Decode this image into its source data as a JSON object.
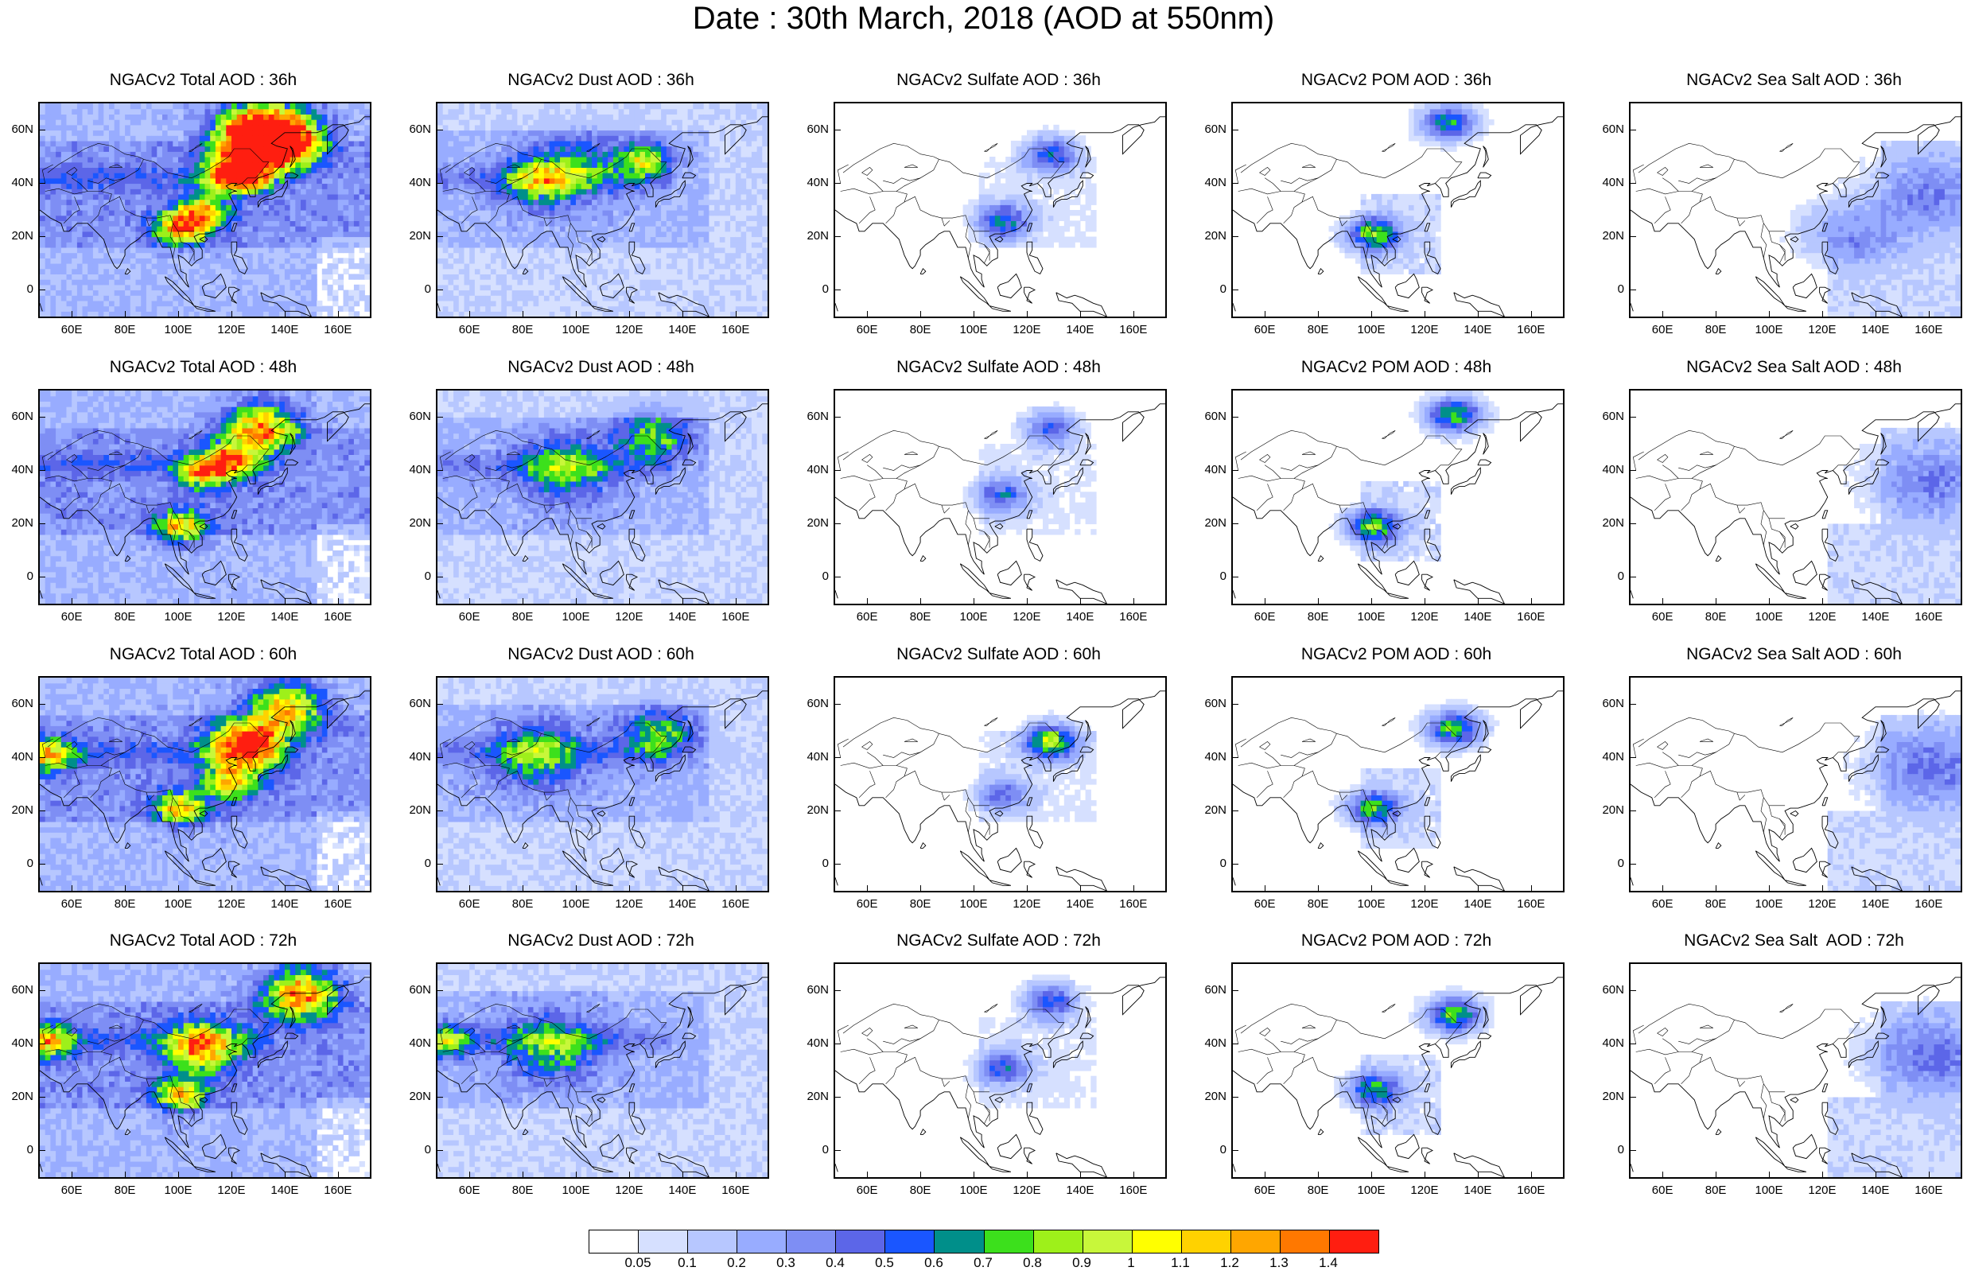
{
  "figure": {
    "title": "Date : 30th March, 2018 (AOD at 550nm)"
  },
  "panels": [
    {
      "title": "NGACv2 Total AOD : 36h",
      "species": "total",
      "hour": 36
    },
    {
      "title": "NGACv2 Dust AOD : 36h",
      "species": "dust",
      "hour": 36
    },
    {
      "title": "NGACv2 Sulfate AOD : 36h",
      "species": "sulfate",
      "hour": 36
    },
    {
      "title": "NGACv2 POM AOD : 36h",
      "species": "pom",
      "hour": 36
    },
    {
      "title": "NGACv2 Sea Salt AOD : 36h",
      "species": "seasalt",
      "hour": 36
    },
    {
      "title": "NGACv2 Total AOD : 48h",
      "species": "total",
      "hour": 48
    },
    {
      "title": "NGACv2 Dust AOD : 48h",
      "species": "dust",
      "hour": 48
    },
    {
      "title": "NGACv2 Sulfate AOD : 48h",
      "species": "sulfate",
      "hour": 48
    },
    {
      "title": "NGACv2 POM AOD : 48h",
      "species": "pom",
      "hour": 48
    },
    {
      "title": "NGACv2 Sea Salt AOD : 48h",
      "species": "seasalt",
      "hour": 48
    },
    {
      "title": "NGACv2 Total AOD : 60h",
      "species": "total",
      "hour": 60
    },
    {
      "title": "NGACv2 Dust AOD : 60h",
      "species": "dust",
      "hour": 60
    },
    {
      "title": "NGACv2 Sulfate AOD : 60h",
      "species": "sulfate",
      "hour": 60
    },
    {
      "title": "NGACv2 POM AOD : 60h",
      "species": "pom",
      "hour": 60
    },
    {
      "title": "NGACv2 Sea Salt AOD : 60h",
      "species": "seasalt",
      "hour": 60
    },
    {
      "title": "NGACv2 Total AOD : 72h",
      "species": "total",
      "hour": 72
    },
    {
      "title": "NGACv2 Dust AOD : 72h",
      "species": "dust",
      "hour": 72
    },
    {
      "title": "NGACv2 Sulfate AOD : 72h",
      "species": "sulfate",
      "hour": 72
    },
    {
      "title": "NGACv2 POM AOD : 72h",
      "species": "pom",
      "hour": 72
    },
    {
      "title": "NGACv2 Sea Salt  AOD : 72h",
      "species": "seasalt",
      "hour": 72
    }
  ],
  "axes": {
    "lon_range": [
      48,
      172
    ],
    "lat_range": [
      -10,
      70
    ],
    "lon_ticks": [
      60,
      80,
      100,
      120,
      140,
      160
    ],
    "lon_tick_labels": [
      "60E",
      "80E",
      "100E",
      "120E",
      "140E",
      "160E"
    ],
    "lat_ticks": [
      0,
      20,
      40,
      60
    ],
    "lat_tick_labels": [
      "0",
      "20N",
      "40N",
      "60N"
    ]
  },
  "colorbar": {
    "levels": [
      "0.05",
      "0.1",
      "0.2",
      "0.3",
      "0.4",
      "0.5",
      "0.6",
      "0.7",
      "0.8",
      "0.9",
      "1",
      "1.1",
      "1.2",
      "1.3",
      "1.4"
    ],
    "colors": [
      "#ffffff",
      "#d6e0ff",
      "#b7c7ff",
      "#98acff",
      "#7e8ef4",
      "#5c66e8",
      "#1a56ff",
      "#008f8a",
      "#3ce01c",
      "#9ef01a",
      "#c8f73a",
      "#ffff00",
      "#ffd200",
      "#ffa600",
      "#ff7800",
      "#ff1e10"
    ]
  },
  "chart_data": [
    {
      "type": "heatmap",
      "title": "NGACv2 Total AOD : 36h",
      "xlabel": "",
      "ylabel": "",
      "xlim": [
        48,
        172
      ],
      "ylim": [
        -10,
        70
      ],
      "features": [
        [
          100,
          22,
          1.0,
          1,
          0.04
        ],
        [
          118,
          43,
          1.0,
          1,
          0.03
        ],
        [
          128,
          56,
          1.2,
          2,
          0.1
        ],
        [
          138,
          55,
          1.2,
          2,
          0.1
        ],
        [
          108,
          28,
          1.0,
          1,
          0.04
        ],
        [
          125,
          42,
          0.8,
          1,
          0.05
        ],
        [
          132,
          58,
          0.9,
          3,
          0.04
        ]
      ]
    },
    {
      "type": "heatmap",
      "title": "NGACv2 Dust AOD : 36h",
      "xlabel": "",
      "ylabel": "",
      "xlim": [
        48,
        172
      ],
      "ylim": [
        -10,
        70
      ],
      "features": [
        [
          85,
          40,
          0.7,
          2,
          0.02
        ],
        [
          125,
          48,
          0.8,
          1,
          0.03
        ],
        [
          100,
          45,
          0.45,
          3,
          0.0
        ]
      ]
    },
    {
      "type": "heatmap",
      "title": "NGACv2 Sulfate AOD : 36h",
      "xlabel": "",
      "ylabel": "",
      "xlim": [
        48,
        172
      ],
      "ylim": [
        -10,
        70
      ],
      "features": [
        [
          110,
          25,
          0.6,
          1,
          0.05
        ],
        [
          128,
          50,
          0.6,
          1,
          0.04
        ]
      ]
    },
    {
      "type": "heatmap",
      "title": "NGACv2 POM AOD : 36h",
      "xlabel": "",
      "ylabel": "",
      "xlim": [
        48,
        172
      ],
      "ylim": [
        -10,
        70
      ],
      "features": [
        [
          100,
          20,
          0.8,
          1,
          0.06
        ],
        [
          128,
          62,
          0.7,
          1,
          0.05
        ]
      ]
    },
    {
      "type": "heatmap",
      "title": "NGACv2 Sea Salt AOD : 36h",
      "xlabel": "",
      "ylabel": "",
      "xlim": [
        48,
        172
      ],
      "ylim": [
        -10,
        70
      ],
      "features": [
        [
          160,
          35,
          0.3,
          4,
          0.02
        ],
        [
          130,
          20,
          0.3,
          3,
          0.02
        ]
      ]
    },
    {
      "type": "heatmap",
      "title": "NGACv2 Total AOD : 48h",
      "xlabel": "",
      "ylabel": "",
      "xlim": [
        48,
        172
      ],
      "ylim": [
        -10,
        70
      ],
      "features": [
        [
          130,
          55,
          1.1,
          2,
          0.09
        ],
        [
          118,
          43,
          0.9,
          1,
          0.04
        ],
        [
          100,
          18,
          0.9,
          1,
          0.04
        ],
        [
          108,
          38,
          0.8,
          1,
          0.04
        ]
      ]
    },
    {
      "type": "heatmap",
      "title": "NGACv2 Dust AOD : 48h",
      "xlabel": "",
      "ylabel": "",
      "xlim": [
        48,
        172
      ],
      "ylim": [
        -10,
        70
      ],
      "features": [
        [
          95,
          40,
          0.6,
          3,
          0.02
        ],
        [
          128,
          52,
          0.6,
          2,
          0.02
        ]
      ]
    },
    {
      "type": "heatmap",
      "title": "NGACv2 Sulfate AOD : 48h",
      "xlabel": "",
      "ylabel": "",
      "xlim": [
        48,
        172
      ],
      "ylim": [
        -10,
        70
      ],
      "features": [
        [
          110,
          30,
          0.5,
          1,
          0.05
        ],
        [
          128,
          55,
          0.5,
          1,
          0.04
        ]
      ]
    },
    {
      "type": "heatmap",
      "title": "NGACv2 POM AOD : 48h",
      "xlabel": "",
      "ylabel": "",
      "xlim": [
        48,
        172
      ],
      "ylim": [
        -10,
        70
      ],
      "features": [
        [
          100,
          18,
          0.8,
          1,
          0.06
        ],
        [
          130,
          60,
          0.8,
          1,
          0.06
        ]
      ]
    },
    {
      "type": "heatmap",
      "title": "NGACv2 Sea Salt AOD : 48h",
      "xlabel": "",
      "ylabel": "",
      "xlim": [
        48,
        172
      ],
      "ylim": [
        -10,
        70
      ],
      "features": [
        [
          160,
          35,
          0.3,
          4,
          0.02
        ]
      ]
    },
    {
      "type": "heatmap",
      "title": "NGACv2 Total AOD : 60h",
      "xlabel": "",
      "ylabel": "",
      "xlim": [
        48,
        172
      ],
      "ylim": [
        -10,
        70
      ],
      "features": [
        [
          125,
          44,
          1.4,
          2,
          0.14
        ],
        [
          140,
          58,
          1.0,
          2,
          0.08
        ],
        [
          118,
          30,
          0.9,
          1,
          0.05
        ],
        [
          100,
          20,
          0.9,
          1,
          0.05
        ],
        [
          50,
          40,
          0.8,
          1,
          0.05
        ]
      ]
    },
    {
      "type": "heatmap",
      "title": "NGACv2 Dust AOD : 60h",
      "xlabel": "",
      "ylabel": "",
      "xlim": [
        48,
        172
      ],
      "ylim": [
        -10,
        70
      ],
      "features": [
        [
          85,
          40,
          0.6,
          3,
          0.03
        ],
        [
          130,
          48,
          0.6,
          2,
          0.02
        ]
      ]
    },
    {
      "type": "heatmap",
      "title": "NGACv2 Sulfate AOD : 60h",
      "xlabel": "",
      "ylabel": "",
      "xlim": [
        48,
        172
      ],
      "ylim": [
        -10,
        70
      ],
      "features": [
        [
          128,
          45,
          0.9,
          1,
          0.07
        ],
        [
          110,
          25,
          0.4,
          1,
          0.04
        ]
      ]
    },
    {
      "type": "heatmap",
      "title": "NGACv2 POM AOD : 60h",
      "xlabel": "",
      "ylabel": "",
      "xlim": [
        48,
        172
      ],
      "ylim": [
        -10,
        70
      ],
      "features": [
        [
          130,
          50,
          0.8,
          1,
          0.05
        ],
        [
          100,
          20,
          0.7,
          1,
          0.05
        ]
      ]
    },
    {
      "type": "heatmap",
      "title": "NGACv2 Sea Salt AOD : 60h",
      "xlabel": "",
      "ylabel": "",
      "xlim": [
        48,
        172
      ],
      "ylim": [
        -10,
        70
      ],
      "features": [
        [
          160,
          35,
          0.35,
          4,
          0.02
        ]
      ]
    },
    {
      "type": "heatmap",
      "title": "NGACv2 Total AOD : 72h",
      "xlabel": "",
      "ylabel": "",
      "xlim": [
        48,
        172
      ],
      "ylim": [
        -10,
        70
      ],
      "features": [
        [
          145,
          58,
          1.2,
          2,
          0.12
        ],
        [
          108,
          38,
          1.0,
          2,
          0.06
        ],
        [
          100,
          20,
          0.9,
          1,
          0.05
        ],
        [
          50,
          40,
          0.8,
          1,
          0.05
        ]
      ]
    },
    {
      "type": "heatmap",
      "title": "NGACv2 Dust AOD : 72h",
      "xlabel": "",
      "ylabel": "",
      "xlim": [
        48,
        172
      ],
      "ylim": [
        -10,
        70
      ],
      "features": [
        [
          90,
          38,
          0.6,
          3,
          0.03
        ],
        [
          50,
          40,
          0.7,
          1,
          0.05
        ]
      ]
    },
    {
      "type": "heatmap",
      "title": "NGACv2 Sulfate AOD : 72h",
      "xlabel": "",
      "ylabel": "",
      "xlim": [
        48,
        172
      ],
      "ylim": [
        -10,
        70
      ],
      "features": [
        [
          128,
          55,
          0.6,
          1,
          0.05
        ],
        [
          110,
          30,
          0.5,
          1,
          0.05
        ]
      ]
    },
    {
      "type": "heatmap",
      "title": "NGACv2 POM AOD : 72h",
      "xlabel": "",
      "ylabel": "",
      "xlim": [
        48,
        172
      ],
      "ylim": [
        -10,
        70
      ],
      "features": [
        [
          130,
          50,
          0.8,
          1,
          0.06
        ],
        [
          100,
          22,
          0.7,
          1,
          0.05
        ]
      ]
    },
    {
      "type": "heatmap",
      "title": "NGACv2 Sea Salt  AOD : 72h",
      "xlabel": "",
      "ylabel": "",
      "xlim": [
        48,
        172
      ],
      "ylim": [
        -10,
        70
      ],
      "features": [
        [
          160,
          35,
          0.35,
          4,
          0.02
        ]
      ]
    }
  ]
}
